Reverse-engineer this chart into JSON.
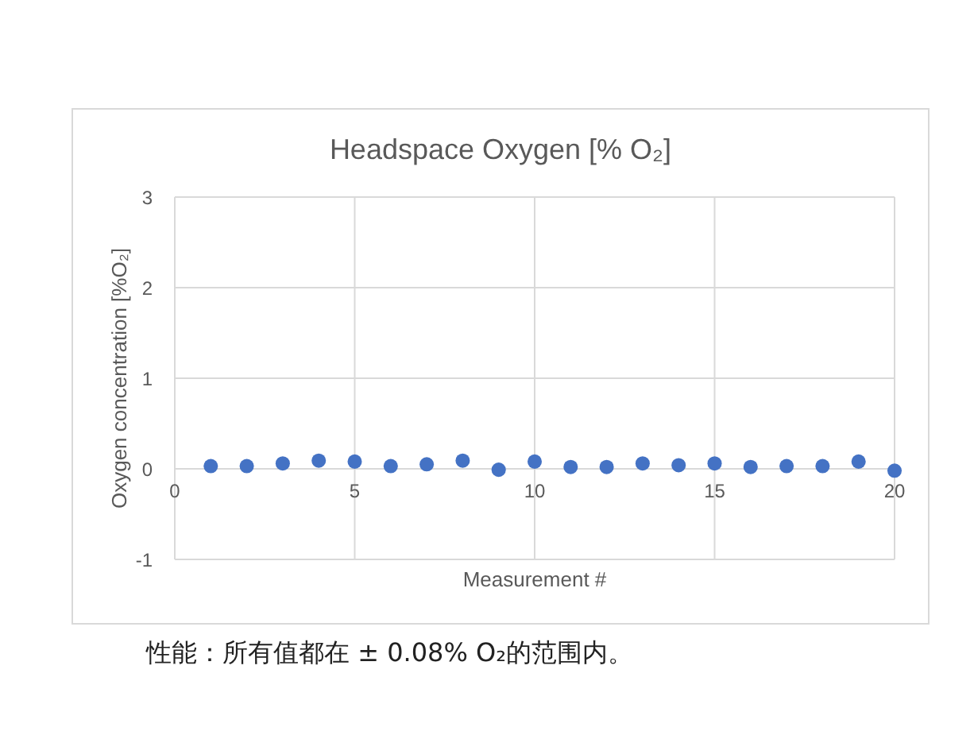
{
  "chart_data": {
    "type": "scatter",
    "title": "Headspace Oxygen [% O₂]",
    "xlabel": "Measurement #",
    "ylabel": "Oxygen concentration [%O₂]",
    "x": [
      1,
      2,
      3,
      4,
      5,
      6,
      7,
      8,
      9,
      10,
      11,
      12,
      13,
      14,
      15,
      16,
      17,
      18,
      19,
      20
    ],
    "values": [
      0.03,
      0.03,
      0.06,
      0.09,
      0.08,
      0.03,
      0.05,
      0.09,
      -0.01,
      0.08,
      0.02,
      0.02,
      0.06,
      0.04,
      0.06,
      0.02,
      0.03,
      0.03,
      0.08,
      -0.02
    ],
    "color": "#4472c4",
    "marker": "circle",
    "xlim": [
      0,
      20
    ],
    "xticks": [
      0,
      5,
      10,
      15,
      20
    ],
    "ylim": [
      -1,
      3
    ],
    "yticks": [
      -1,
      0,
      1,
      2,
      3
    ],
    "grid": true,
    "annotations": [
      "性能：所有值都在 ± 0.08% O₂的范围内。"
    ]
  }
}
